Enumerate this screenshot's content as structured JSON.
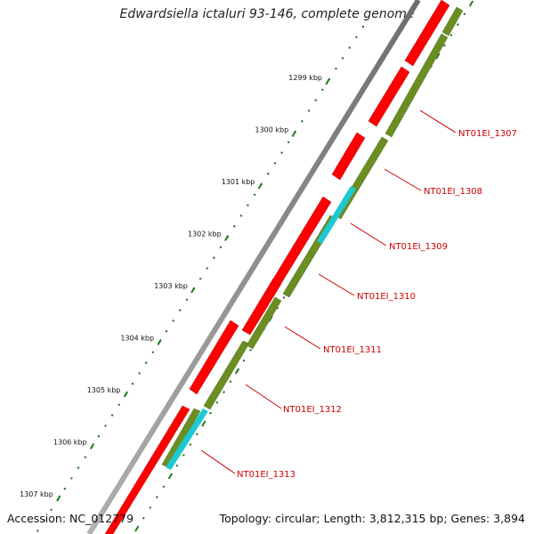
{
  "title": "Edwardsiella ictaluri 93-146, complete genome",
  "footer": {
    "accession": "Accession: NC_012779",
    "summary": "Topology: circular; Length: 3,812,315 bp; Genes: 3,894"
  },
  "ticks": [
    {
      "kbp": 1299,
      "label": "1299 kbp"
    },
    {
      "kbp": 1300,
      "label": "1300 kbp"
    },
    {
      "kbp": 1301,
      "label": "1301 kbp"
    },
    {
      "kbp": 1302,
      "label": "1302 kbp"
    },
    {
      "kbp": 1303,
      "label": "1303 kbp"
    },
    {
      "kbp": 1304,
      "label": "1304 kbp"
    },
    {
      "kbp": 1305,
      "label": "1305 kbp"
    },
    {
      "kbp": 1306,
      "label": "1306 kbp"
    },
    {
      "kbp": 1307,
      "label": "1307 kbp"
    }
  ],
  "gene_labels": [
    "NT01EI_1307",
    "NT01EI_1308",
    "NT01EI_1309",
    "NT01EI_1310",
    "NT01EI_1311",
    "NT01EI_1312",
    "NT01EI_1313"
  ],
  "colors": {
    "forward_cds": "#ff0000",
    "reverse_cds": "#6b8e23",
    "feature_cyan": "#1ec8d2",
    "backbone": "#808080",
    "tick": "#1f7a1f",
    "label": "#cc0000"
  }
}
